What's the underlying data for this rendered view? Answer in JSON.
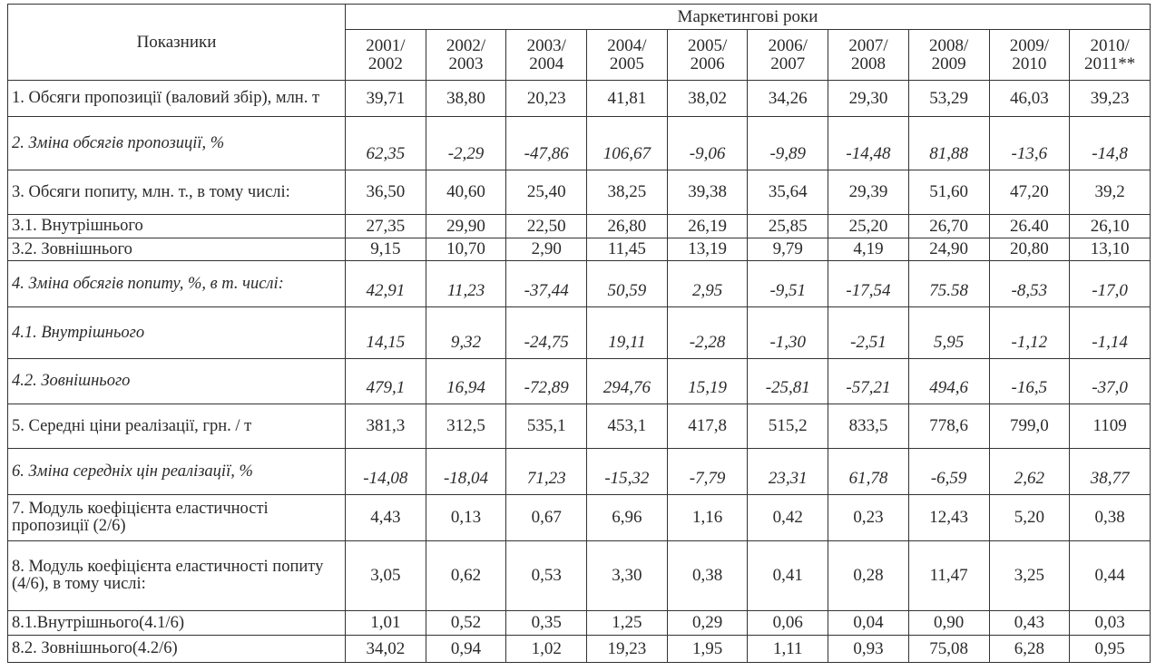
{
  "table": {
    "header": {
      "indicator": "Показники",
      "years_title": "Маркетингові роки",
      "years": [
        "2001/\n2002",
        "2002/\n2003",
        "2003/\n2004",
        "2004/\n2005",
        "2005/\n2006",
        "2006/\n2007",
        "2007/\n2008",
        "2008/\n2009",
        "2009/\n2010",
        "2010/\n2011**"
      ]
    },
    "rows": [
      {
        "label": "1. Обсяги пропозиції (валовий збір), млн. т",
        "values": [
          "39,71",
          "38,80",
          "20,23",
          "41,81",
          "38,02",
          "34,26",
          "29,30",
          "53,29",
          "46,03",
          "39,23"
        ]
      },
      {
        "label": "2. Зміна обсягів пропозиції, %",
        "values": [
          "62,35",
          "-2,29",
          "-47,86",
          "106,67",
          "-9,06",
          "-9,89",
          "-14,48",
          "81,88",
          "-13,6",
          "-14,8"
        ]
      },
      {
        "label": "3. Обсяги попиту, млн. т., в тому числі:",
        "values": [
          "36,50",
          "40,60",
          "25,40",
          "38,25",
          "39,38",
          "35,64",
          "29,39",
          "51,60",
          "47,20",
          "39,2"
        ]
      },
      {
        "label": "3.1. Внутрішнього",
        "values": [
          "27,35",
          "29,90",
          "22,50",
          "26,80",
          "26,19",
          "25,85",
          "25,20",
          "26,70",
          "26.40",
          "26,10"
        ]
      },
      {
        "label": "3.2. Зовнішнього",
        "values": [
          "9,15",
          "10,70",
          "2,90",
          "11,45",
          "13,19",
          "9,79",
          "4,19",
          "24,90",
          "20,80",
          "13,10"
        ]
      },
      {
        "label": "4. Зміна обсягів попиту, %, в т. числі:",
        "values": [
          "42,91",
          "11,23",
          "-37,44",
          "50,59",
          "2,95",
          "-9,51",
          "-17,54",
          "75.58",
          "-8,53",
          "-17,0"
        ]
      },
      {
        "label": "4.1. Внутрішнього",
        "values": [
          "14,15",
          "9,32",
          "-24,75",
          "19,11",
          "-2,28",
          "-1,30",
          "-2,51",
          "5,95",
          "-1,12",
          "-1,14"
        ]
      },
      {
        "label": "4.2. Зовнішнього",
        "values": [
          "479,1",
          "16,94",
          "-72,89",
          "294,76",
          "15,19",
          "-25,81",
          "-57,21",
          "494,6",
          "-16,5",
          "-37,0"
        ]
      },
      {
        "label": "5. Середні ціни реалізації, грн. / т",
        "values": [
          "381,3",
          "312,5",
          "535,1",
          "453,1",
          "417,8",
          "515,2",
          "833,5",
          "778,6",
          "799,0",
          "1109"
        ]
      },
      {
        "label": "6. Зміна середніх цін реалізації, %",
        "values": [
          "-14,08",
          "-18,04",
          "71,23",
          "-15,32",
          "-7,79",
          "23,31",
          "61,78",
          "-6,59",
          "2,62",
          "38,77"
        ]
      },
      {
        "label": "7. Модуль коефіцієнта еластичності пропозиції (2/6)",
        "values": [
          "4,43",
          "0,13",
          "0,67",
          "6,96",
          "1,16",
          "0,42",
          "0,23",
          "12,43",
          "5,20",
          "0,38"
        ]
      },
      {
        "label": "8. Модуль коефіцієнта еластичності попиту (4/6), в тому числі:",
        "values": [
          "3,05",
          "0,62",
          "0,53",
          "3,30",
          "0,38",
          "0,41",
          "0,28",
          "11,47",
          "3,25",
          "0,44"
        ]
      },
      {
        "label": "8.1.Внутрішнього(4.1/6)",
        "values": [
          "1,01",
          "0,52",
          "0,35",
          "1,25",
          "0,29",
          "0,06",
          "0,04",
          "0,90",
          "0,43",
          "0,03"
        ]
      },
      {
        "label": "8.2. Зовнішнього(4.2/6)",
        "values": [
          "34,02",
          "0,94",
          "1,02",
          "19,23",
          "1,95",
          "1,11",
          "0,93",
          "75,08",
          "6,28",
          "0,95"
        ]
      }
    ]
  }
}
